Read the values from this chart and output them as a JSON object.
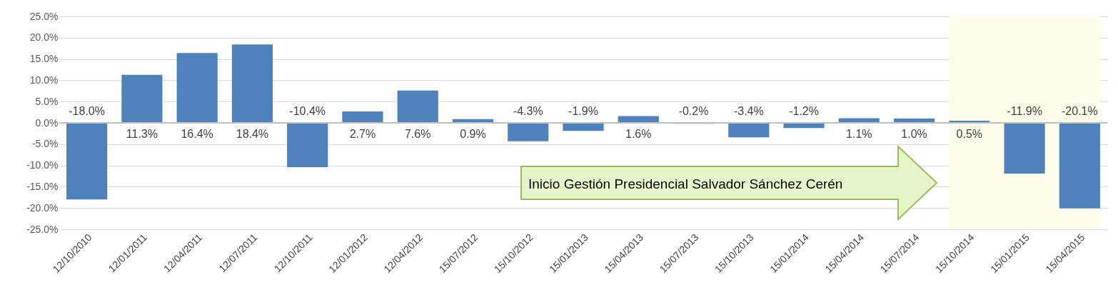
{
  "chart_data": {
    "type": "bar",
    "categories": [
      "12/10/2010",
      "12/01/2011",
      "12/04/2011",
      "12/07/2011",
      "12/10/2011",
      "12/01/2012",
      "12/04/2012",
      "15/07/2012",
      "15/10/2012",
      "15/01/2013",
      "15/04/2013",
      "15/07/2013",
      "15/10/2013",
      "15/01/2014",
      "15/04/2014",
      "15/07/2014",
      "15/10/2014",
      "15/01/2015",
      "15/04/2015"
    ],
    "values": [
      -18.0,
      11.3,
      16.4,
      18.4,
      -10.4,
      2.7,
      7.6,
      0.9,
      -4.3,
      -1.9,
      1.6,
      -0.2,
      -3.4,
      -1.2,
      1.1,
      1.0,
      0.5,
      -11.9,
      -20.1
    ],
    "value_labels": [
      "-18.0%",
      "11.3%",
      "16.4%",
      "18.4%",
      "-10.4%",
      "2.7%",
      "7.6%",
      "0.9%",
      "-4.3%",
      "-1.9%",
      "1.6%",
      "-0.2%",
      "-3.4%",
      "-1.2%",
      "1.1%",
      "1.0%",
      "0.5%",
      "-11.9%",
      "-20.1%"
    ],
    "color": "#4f81bd",
    "ylim": [
      -25,
      25
    ],
    "yticks": [
      {
        "value": -25,
        "label": "-25.0%"
      },
      {
        "value": -20,
        "label": "-20.0%"
      },
      {
        "value": -15,
        "label": "-15.0%"
      },
      {
        "value": -10,
        "label": "-10.0%"
      },
      {
        "value": -5,
        "label": "-5.0%"
      },
      {
        "value": 0,
        "label": "0.0%"
      },
      {
        "value": 5,
        "label": "5.0%"
      },
      {
        "value": 10,
        "label": "10.0%"
      },
      {
        "value": 15,
        "label": "15.0%"
      },
      {
        "value": 20,
        "label": "20.0%"
      },
      {
        "value": 25,
        "label": "25.0%"
      }
    ],
    "grid": "y",
    "bands": [
      {
        "axis": "x",
        "from": "15/10/2014",
        "to": "15/04/2015",
        "color": "#fefde9"
      }
    ],
    "annotations": [
      "Inicio Gestión Presidencial Salvador Sánchez Cerén"
    ]
  }
}
